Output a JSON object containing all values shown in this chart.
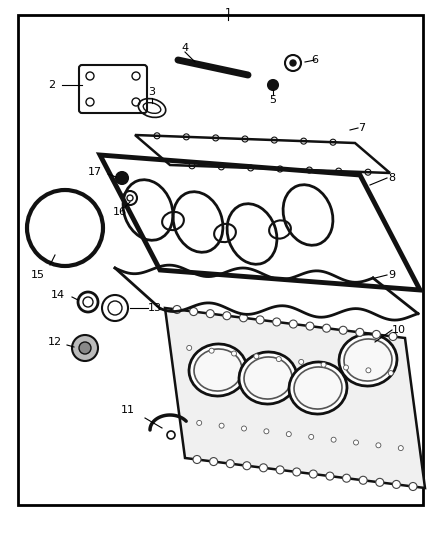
{
  "bg_color": "#ffffff",
  "border_color": "#000000",
  "part_color": "#111111",
  "fig_width": 4.38,
  "fig_height": 5.33,
  "dpi": 100
}
